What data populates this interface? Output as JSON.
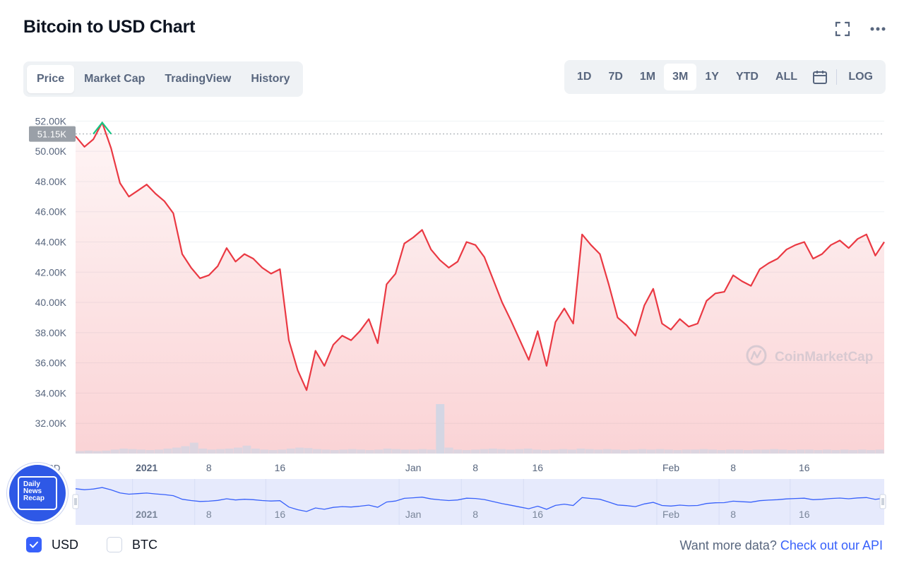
{
  "title": "Bitcoin to USD Chart",
  "icons": {
    "fullscreen": "fullscreen-icon",
    "more": "more-icon",
    "calendar": "calendar-icon"
  },
  "tabs": [
    {
      "label": "Price",
      "active": true
    },
    {
      "label": "Market Cap",
      "active": false
    },
    {
      "label": "TradingView",
      "active": false
    },
    {
      "label": "History",
      "active": false
    }
  ],
  "ranges": [
    {
      "label": "1D",
      "active": false
    },
    {
      "label": "7D",
      "active": false
    },
    {
      "label": "1M",
      "active": false
    },
    {
      "label": "3M",
      "active": true
    },
    {
      "label": "1Y",
      "active": false
    },
    {
      "label": "YTD",
      "active": false
    },
    {
      "label": "ALL",
      "active": false
    }
  ],
  "log_label": "LOG",
  "currency_options": [
    {
      "label": "USD",
      "checked": true
    },
    {
      "label": "BTC",
      "checked": false
    }
  ],
  "more_data_prefix": "Want more data?",
  "more_data_link": "Check out our API",
  "badge_lines": [
    "Daily",
    "News",
    "Recap"
  ],
  "colors": {
    "line_down": "#ea3943",
    "line_up": "#16c784",
    "area_top": "#ea3943",
    "navigator_fill": "#e6eafc",
    "navigator_line": "#3861fb",
    "accent": "#3861fb",
    "price_tag": "#9aa0a8"
  },
  "chart_data": {
    "type": "line",
    "title": "Bitcoin to USD Chart",
    "series": [
      {
        "name": "USD",
        "x": [
          "2020-12-24",
          "2020-12-25",
          "2020-12-26",
          "2020-12-27",
          "2020-12-28",
          "2020-12-29",
          "2020-12-30",
          "2020-12-31",
          "2021-01-01",
          "2021-01-02",
          "2021-01-03",
          "2021-01-04",
          "2021-01-05",
          "2021-01-06",
          "2021-01-07",
          "2021-01-08",
          "2021-01-09",
          "2021-01-10",
          "2021-01-11",
          "2021-01-12",
          "2021-01-13",
          "2021-01-14",
          "2021-01-15",
          "2021-01-16",
          "2021-01-17",
          "2021-01-18",
          "2021-01-19",
          "2021-01-20",
          "2021-01-21",
          "2021-01-22",
          "2021-01-23",
          "2021-01-24",
          "2021-01-25",
          "2021-01-26",
          "2021-01-27",
          "2021-01-28",
          "2021-01-29",
          "2021-01-30",
          "2021-01-31",
          "2021-02-01",
          "2021-02-02",
          "2021-02-03",
          "2021-02-04",
          "2021-02-05",
          "2021-02-06",
          "2021-02-07",
          "2021-02-08",
          "2021-02-09",
          "2021-02-10",
          "2021-02-11",
          "2021-02-12",
          "2021-02-13",
          "2021-02-14",
          "2021-02-15",
          "2021-02-16",
          "2021-02-17",
          "2021-02-18",
          "2021-02-19",
          "2021-02-20",
          "2021-02-21",
          "2021-02-22",
          "2021-02-23",
          "2021-02-24",
          "2021-02-25",
          "2021-02-26",
          "2021-02-27",
          "2021-02-28",
          "2021-03-01",
          "2021-03-02",
          "2021-03-03",
          "2021-03-04",
          "2021-03-05",
          "2021-03-06",
          "2021-03-07",
          "2021-03-08",
          "2021-03-09",
          "2021-03-10",
          "2021-03-11",
          "2021-03-12",
          "2021-03-13",
          "2021-03-14",
          "2021-03-15",
          "2021-03-16",
          "2021-03-17",
          "2021-03-18",
          "2021-03-19",
          "2021-03-20",
          "2021-03-21",
          "2021-03-22",
          "2021-03-23",
          "2021-03-24",
          "2021-03-25"
        ],
        "values": [
          51000,
          50300,
          50800,
          51900,
          50200,
          47900,
          47000,
          47400,
          47800,
          47200,
          46700,
          45900,
          43200,
          42300,
          41600,
          41800,
          42400,
          43600,
          42700,
          43200,
          42900,
          42300,
          41900,
          42200,
          37500,
          35500,
          34200,
          36800,
          35800,
          37200,
          37800,
          37500,
          38100,
          38900,
          37300,
          41200,
          41900,
          43900,
          44300,
          44800,
          43500,
          42800,
          42300,
          42700,
          44000,
          43800,
          43000,
          41500,
          40000,
          38800,
          37500,
          36200,
          38100,
          35800,
          38700,
          39600,
          38600,
          44500,
          43800,
          43200,
          41200,
          39000,
          38500,
          37800,
          39800,
          40900,
          38600,
          38200,
          38900,
          38400,
          38600,
          40100,
          40600,
          40700,
          41800,
          41400,
          41100,
          42200,
          42600,
          42900,
          43500,
          43800,
          44000,
          42900,
          43200,
          43800,
          44100,
          43600,
          44200,
          44500,
          43100,
          44000
        ],
        "color": "#ea3943"
      }
    ],
    "current_price_label": "51.15K",
    "current_price": 51150,
    "ylim": [
      30000,
      53000
    ],
    "y_ticks": [
      32000,
      34000,
      36000,
      38000,
      40000,
      42000,
      44000,
      46000,
      48000,
      50000,
      52000
    ],
    "y_tick_labels": [
      "32.00K",
      "34.00K",
      "36.00K",
      "38.00K",
      "40.00K",
      "42.00K",
      "44.00K",
      "46.00K",
      "48.00K",
      "50.00K",
      "52.00K"
    ],
    "x_tick_labels": [
      {
        "label": "2021",
        "date": "2021-01-01",
        "bold": true
      },
      {
        "label": "8",
        "date": "2021-01-08",
        "bold": false
      },
      {
        "label": "16",
        "date": "2021-01-16",
        "bold": false
      },
      {
        "label": "Jan",
        "date": "2021-01-31",
        "bold": false
      },
      {
        "label": "8",
        "date": "2021-02-07",
        "bold": false
      },
      {
        "label": "16",
        "date": "2021-02-14",
        "bold": false
      },
      {
        "label": "Feb",
        "date": "2021-03-01",
        "bold": false
      },
      {
        "label": "8",
        "date": "2021-03-08",
        "bold": false
      },
      {
        "label": "16",
        "date": "2021-03-16",
        "bold": false
      }
    ],
    "y_axis_currency_label": "USD",
    "volume_relative": [
      0.05,
      0.06,
      0.05,
      0.06,
      0.08,
      0.1,
      0.09,
      0.08,
      0.07,
      0.08,
      0.1,
      0.12,
      0.15,
      0.22,
      0.1,
      0.08,
      0.09,
      0.1,
      0.12,
      0.16,
      0.1,
      0.08,
      0.07,
      0.08,
      0.1,
      0.12,
      0.11,
      0.09,
      0.08,
      0.07,
      0.08,
      0.09,
      0.08,
      0.07,
      0.08,
      0.1,
      0.09,
      0.08,
      0.08,
      0.09,
      0.08,
      1.0,
      0.12,
      0.08,
      0.07,
      0.08,
      0.09,
      0.1,
      0.09,
      0.08,
      0.09,
      0.1,
      0.08,
      0.07,
      0.08,
      0.09,
      0.08,
      0.1,
      0.09,
      0.08,
      0.09,
      0.08,
      0.07,
      0.08,
      0.09,
      0.08,
      0.09,
      0.08,
      0.07,
      0.08,
      0.08,
      0.09,
      0.08,
      0.07,
      0.08,
      0.08,
      0.07,
      0.08,
      0.08,
      0.09,
      0.08,
      0.07,
      0.08,
      0.08,
      0.07,
      0.08,
      0.07,
      0.08,
      0.07,
      0.08,
      0.07,
      0.08
    ],
    "watermark": "CoinMarketCap",
    "grid": true
  }
}
